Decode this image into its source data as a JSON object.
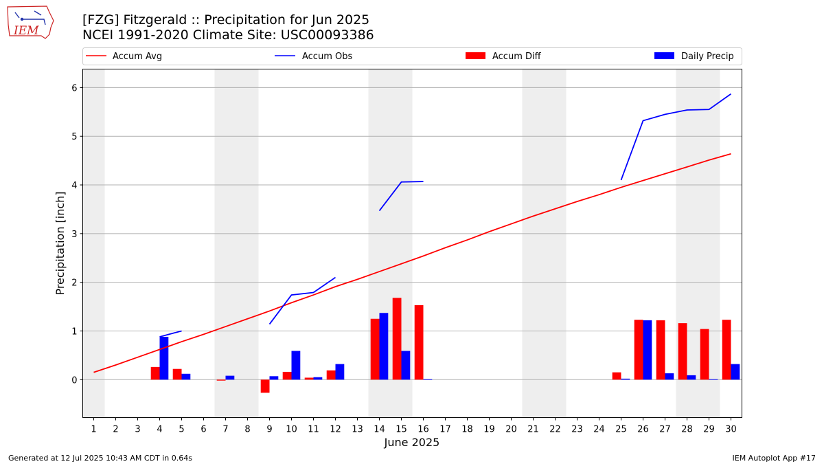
{
  "logo": {
    "text": "IEM"
  },
  "title_line1": "[FZG] Fitzgerald :: Precipitation for Jun 2025",
  "title_line2": "NCEI 1991-2020 Climate Site: USC00093386",
  "footer_left": "Generated at 12 Jul 2025 10:43 AM CDT in 0.64s",
  "footer_right": "IEM Autoplot App #17",
  "colors": {
    "avg": "#ff0000",
    "obs": "#0000ff",
    "diff": "#ff0000",
    "daily": "#0000ff",
    "weekend": "#eeeeee",
    "grid": "#b0b0b0"
  },
  "chart_data": {
    "type": "bar",
    "xlabel": "June 2025",
    "ylabel": "Precipitation [inch]",
    "xlim": [
      0.5,
      30.5
    ],
    "ylim": [
      -0.78,
      6.38
    ],
    "yticks": [
      0,
      1,
      2,
      3,
      4,
      5,
      6
    ],
    "categories": [
      1,
      2,
      3,
      4,
      5,
      6,
      7,
      8,
      9,
      10,
      11,
      12,
      13,
      14,
      15,
      16,
      17,
      18,
      19,
      20,
      21,
      22,
      23,
      24,
      25,
      26,
      27,
      28,
      29,
      30
    ],
    "weekend_days": [
      1,
      7,
      8,
      14,
      15,
      21,
      22,
      28,
      29
    ],
    "legend": [
      "Accum Avg",
      "Accum Obs",
      "Accum Diff",
      "Daily Precip"
    ],
    "legend_position": "top",
    "grid": "horizontal",
    "series": [
      {
        "name": "Accum Avg",
        "type": "line",
        "values": [
          0.15,
          0.3,
          0.46,
          0.62,
          0.78,
          0.93,
          1.09,
          1.25,
          1.41,
          1.58,
          1.74,
          1.91,
          2.06,
          2.22,
          2.38,
          2.54,
          2.71,
          2.87,
          3.04,
          3.2,
          3.36,
          3.51,
          3.66,
          3.8,
          3.95,
          4.09,
          4.23,
          4.37,
          4.51,
          4.64
        ]
      },
      {
        "name": "Accum Obs",
        "type": "line",
        "segments": [
          {
            "x": [
              4,
              5
            ],
            "y": [
              0.88,
              1.0
            ]
          },
          {
            "x": [
              9,
              10,
              11,
              12
            ],
            "y": [
              1.14,
              1.74,
              1.79,
              2.1
            ]
          },
          {
            "x": [
              14,
              15,
              16
            ],
            "y": [
              3.47,
              4.06,
              4.07
            ]
          },
          {
            "x": [
              25,
              26,
              27,
              28,
              29,
              30
            ],
            "y": [
              4.1,
              5.32,
              5.45,
              5.54,
              5.55,
              5.87
            ]
          }
        ]
      },
      {
        "name": "Accum Diff",
        "type": "bar",
        "values": [
          0,
          0,
          0,
          0.26,
          0.22,
          0,
          -0.02,
          0,
          -0.27,
          0.16,
          0.04,
          0.19,
          0,
          1.25,
          1.68,
          1.53,
          0,
          0,
          0,
          0,
          0,
          0,
          0,
          0,
          0.15,
          1.23,
          1.22,
          1.16,
          1.04,
          1.23
        ]
      },
      {
        "name": "Daily Precip",
        "type": "bar",
        "values": [
          0,
          0,
          0,
          0.88,
          0.12,
          0,
          0.08,
          0,
          0.07,
          0.59,
          0.05,
          0.32,
          0,
          1.37,
          0.59,
          0.01,
          0,
          0,
          0,
          0,
          0,
          0,
          0,
          0,
          0.02,
          1.22,
          0.13,
          0.09,
          0.01,
          0.32
        ]
      }
    ]
  }
}
